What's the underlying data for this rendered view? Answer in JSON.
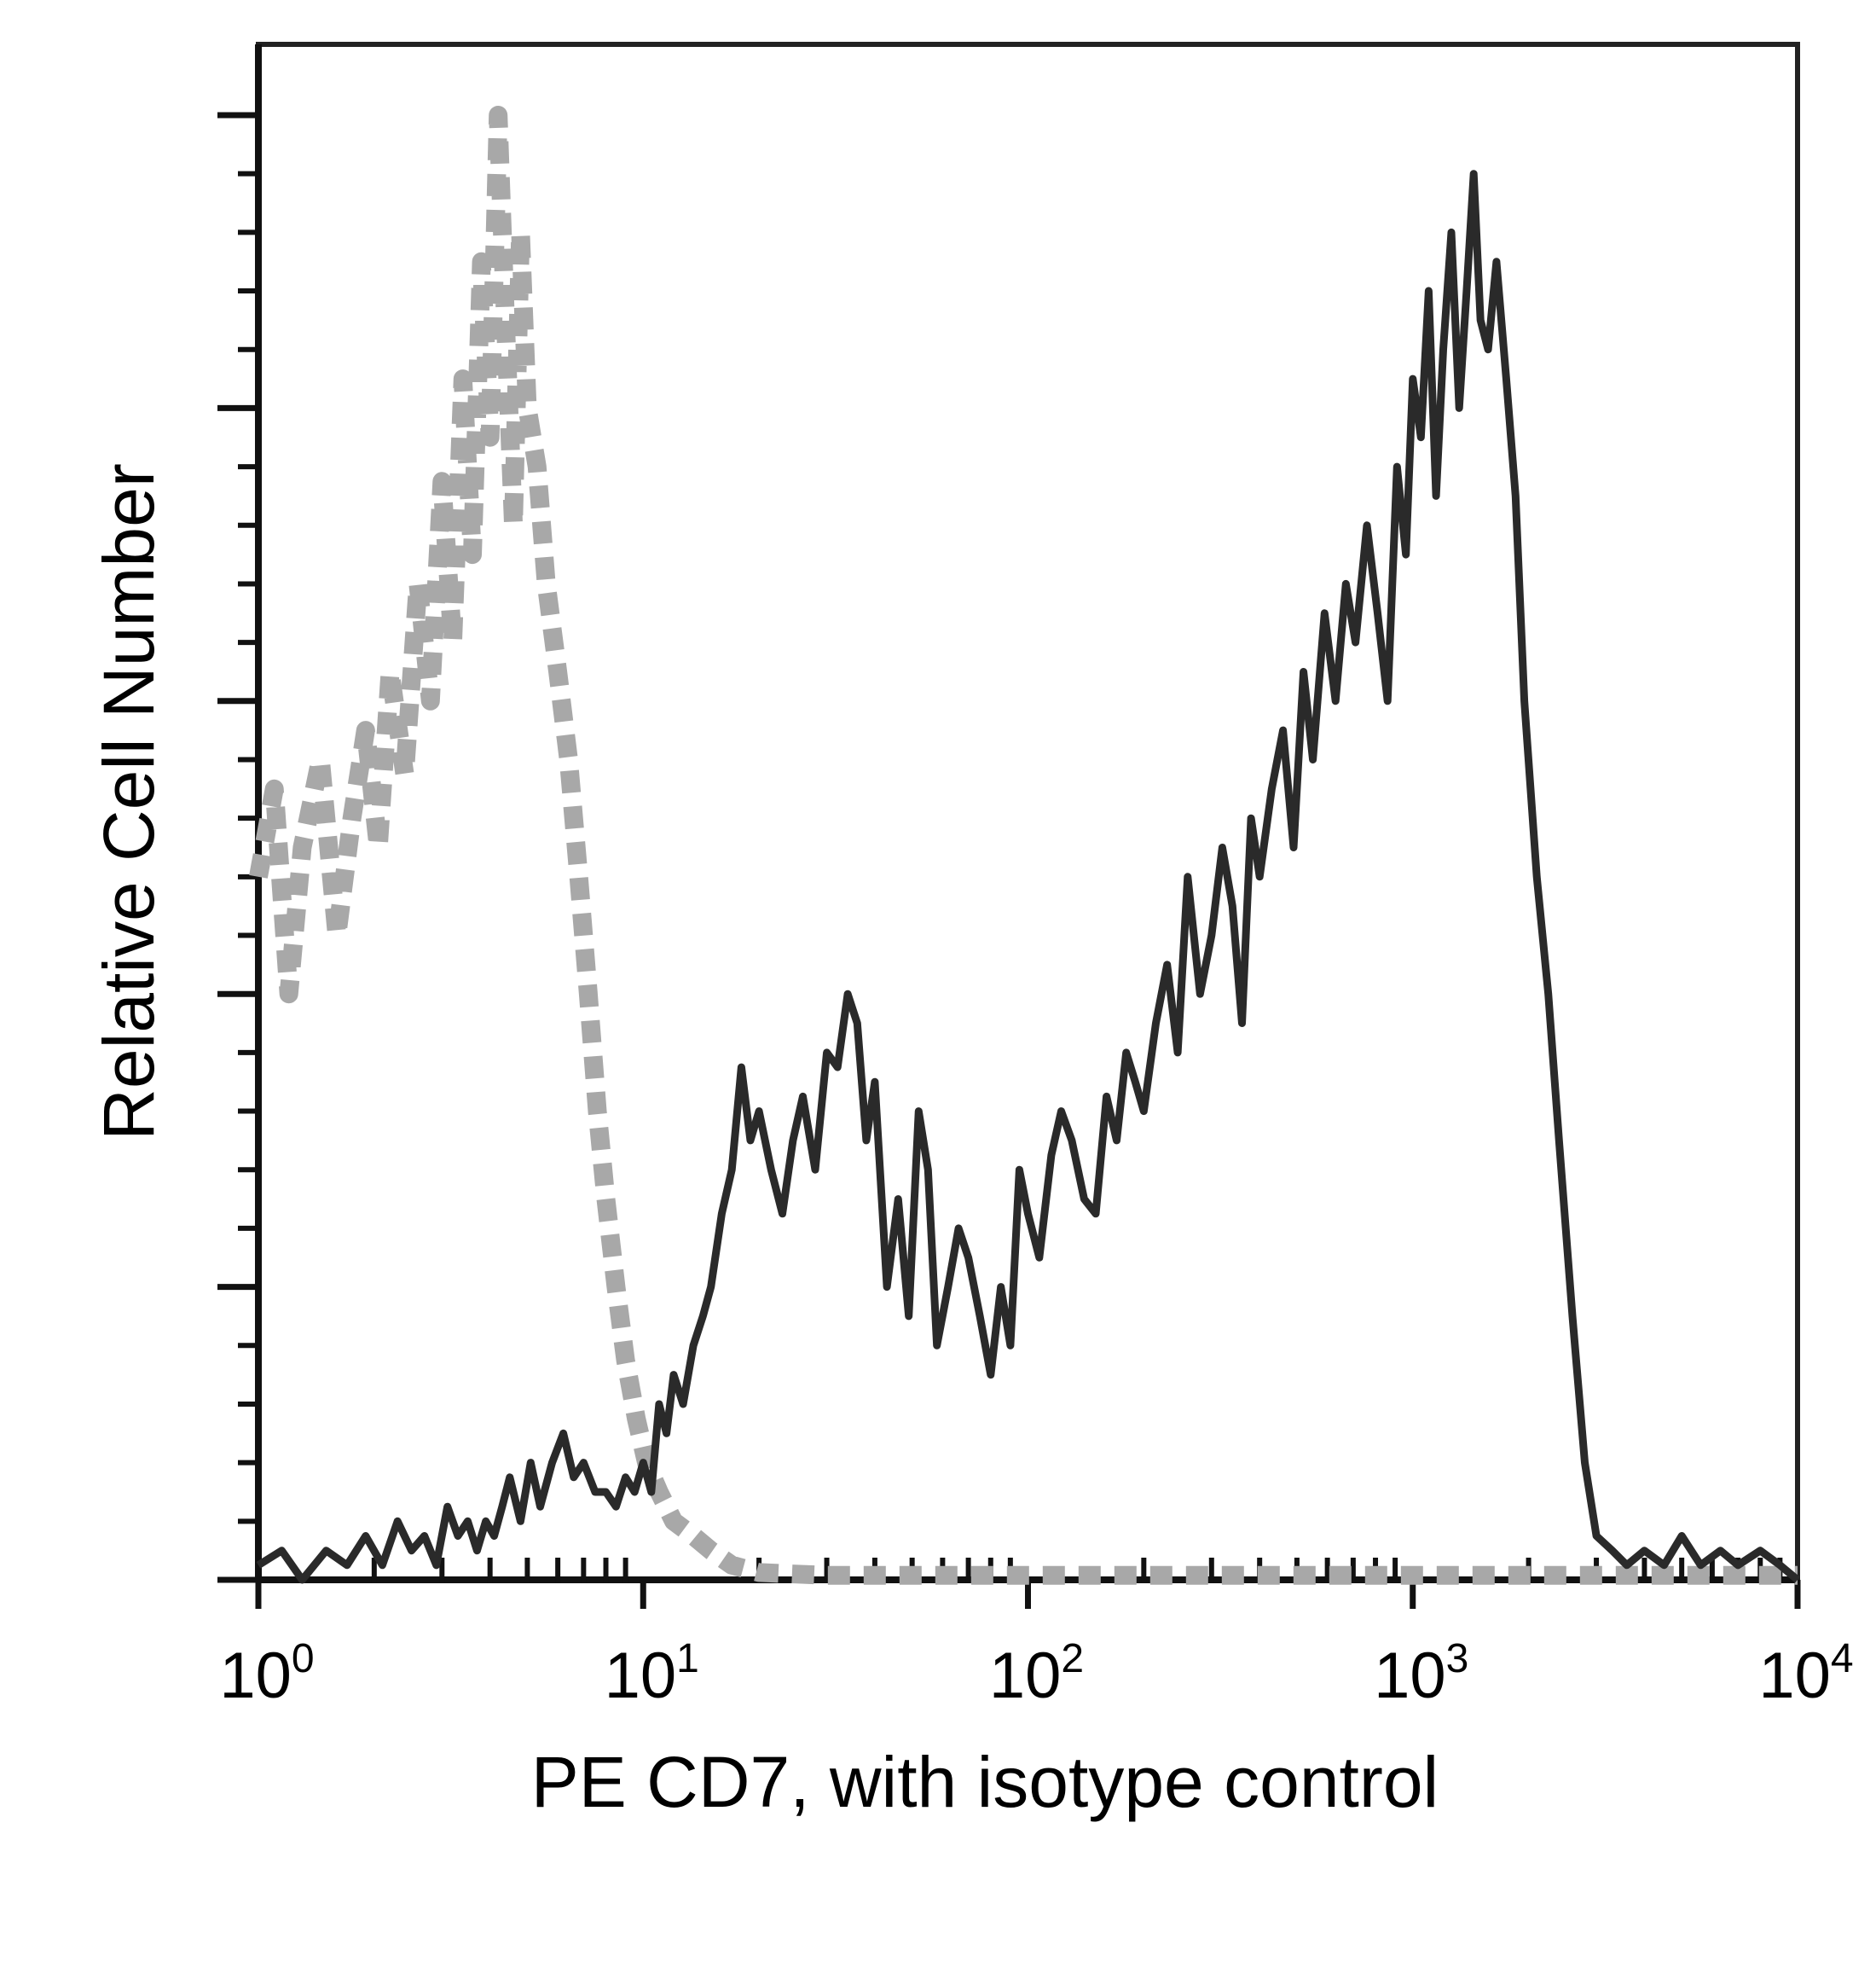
{
  "chart_data": {
    "type": "line",
    "title": "",
    "xlabel": "PE CD7, with isotype control",
    "ylabel": "Relative Cell Number",
    "xscale": "log",
    "xlim": [
      1,
      10000
    ],
    "ylim": [
      0,
      100
    ],
    "x_ticks": [
      {
        "base": "10",
        "exp": "0"
      },
      {
        "base": "10",
        "exp": "1"
      },
      {
        "base": "10",
        "exp": "2"
      },
      {
        "base": "10",
        "exp": "3"
      },
      {
        "base": "10",
        "exp": "4"
      }
    ],
    "y_ticks_labeled": false,
    "grid": false,
    "series": [
      {
        "style": "dashed-gray",
        "color": "#a8a8a8",
        "x": [
          1.0,
          1.1,
          1.2,
          1.3,
          1.45,
          1.6,
          1.75,
          1.9,
          2.05,
          2.2,
          2.4,
          2.6,
          2.8,
          3.0,
          3.2,
          3.4,
          3.6,
          3.8,
          4.0,
          4.2,
          4.4,
          4.6,
          4.8,
          5.0,
          5.3,
          5.6,
          6.0,
          6.4,
          6.8,
          7.2,
          7.6,
          8.0,
          8.5,
          9.0,
          9.6,
          10.2,
          11.0,
          12.0,
          13.5,
          15.0,
          17.0,
          20.0,
          30.0,
          50.0,
          100.0,
          300.0,
          1000.0,
          3000.0,
          10000.0
        ],
        "y": [
          48,
          54,
          40,
          50,
          56,
          44,
          52,
          58,
          50,
          62,
          55,
          68,
          60,
          75,
          64,
          82,
          70,
          90,
          78,
          100,
          85,
          72,
          92,
          80,
          76,
          68,
          62,
          56,
          48,
          40,
          32,
          26,
          20,
          15,
          11,
          8,
          6,
          4,
          3,
          2,
          1,
          0.5,
          0.3,
          0.3,
          0.3,
          0.3,
          0.3,
          0.3,
          0.3
        ]
      },
      {
        "style": "solid-dark",
        "color": "#2a2a2a",
        "x": [
          1.0,
          1.15,
          1.3,
          1.5,
          1.7,
          1.9,
          2.1,
          2.3,
          2.5,
          2.7,
          2.9,
          3.1,
          3.3,
          3.5,
          3.7,
          3.9,
          4.1,
          4.3,
          4.5,
          4.8,
          5.1,
          5.4,
          5.8,
          6.2,
          6.6,
          7.0,
          7.5,
          8.0,
          8.5,
          9.0,
          9.5,
          10.0,
          10.5,
          11.0,
          11.5,
          12.0,
          12.7,
          13.5,
          14.3,
          15.0,
          16.0,
          17.0,
          18.0,
          19.0,
          20.0,
          21.5,
          23.0,
          24.5,
          26.0,
          28.0,
          30.0,
          32.0,
          34.0,
          36.0,
          38.0,
          40.0,
          43.0,
          46.0,
          49.0,
          52.0,
          55.0,
          58.0,
          62.0,
          66.0,
          70.0,
          75.0,
          80.0,
          85.0,
          90.0,
          95.0,
          100.0,
          107.0,
          115.0,
          122.0,
          130.0,
          140.0,
          150.0,
          160.0,
          170.0,
          180.0,
          190.0,
          200.0,
          215.0,
          230.0,
          245.0,
          260.0,
          280.0,
          300.0,
          320.0,
          340.0,
          360.0,
          380.0,
          400.0,
          430.0,
          460.0,
          490.0,
          520.0,
          550.0,
          590.0,
          630.0,
          670.0,
          710.0,
          760.0,
          810.0,
          860.0,
          910.0,
          960.0,
          1000.0,
          1050.0,
          1100.0,
          1150.0,
          1200.0,
          1260.0,
          1320.0,
          1380.0,
          1440.0,
          1500.0,
          1570.0,
          1650.0,
          1750.0,
          1850.0,
          1950.0,
          2100.0,
          2250.0,
          2400.0,
          2600.0,
          2800.0,
          3000.0,
          3300.0,
          3600.0,
          4000.0,
          4500.0,
          5000.0,
          5600.0,
          6300.0,
          7000.0,
          8000.0,
          9000.0,
          10000.0
        ],
        "y": [
          1,
          2,
          0,
          2,
          1,
          3,
          1,
          4,
          2,
          3,
          1,
          5,
          3,
          4,
          2,
          4,
          3,
          5,
          7,
          4,
          8,
          5,
          8,
          10,
          7,
          8,
          6,
          6,
          5,
          7,
          6,
          8,
          6,
          12,
          10,
          14,
          12,
          16,
          18,
          20,
          25,
          28,
          35,
          30,
          32,
          28,
          25,
          30,
          33,
          28,
          36,
          35,
          40,
          38,
          30,
          34,
          20,
          26,
          18,
          32,
          28,
          16,
          20,
          24,
          22,
          18,
          14,
          20,
          16,
          28,
          25,
          22,
          29,
          32,
          30,
          26,
          25,
          33,
          30,
          36,
          34,
          32,
          38,
          42,
          36,
          48,
          40,
          44,
          50,
          46,
          38,
          52,
          48,
          54,
          58,
          50,
          62,
          56,
          66,
          60,
          68,
          64,
          72,
          66,
          60,
          76,
          70,
          82,
          78,
          88,
          74,
          84,
          92,
          80,
          88,
          96,
          86,
          84,
          90,
          82,
          74,
          60,
          48,
          40,
          30,
          18,
          8,
          3,
          2,
          1,
          2,
          1,
          3,
          1,
          2,
          1,
          2,
          1,
          0
        ]
      }
    ]
  }
}
